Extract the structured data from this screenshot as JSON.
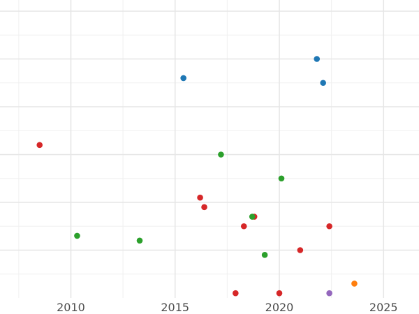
{
  "chart_data": {
    "type": "scatter",
    "title": "",
    "xlabel": "",
    "ylabel": "",
    "xlim": [
      2006.6,
      2026.7
    ],
    "ylim": [
      0,
      6
    ],
    "x_ticks": [
      2010,
      2015,
      2020,
      2025
    ],
    "x_tick_labels": [
      "2010",
      "2015",
      "2020",
      "2025"
    ],
    "y_gridlines": [
      1,
      2,
      3,
      4,
      5,
      6
    ],
    "y_tick_labels_visible": false,
    "grid": true,
    "legend": "none",
    "series": [
      {
        "color": "#1f77b4",
        "points": [
          {
            "x": 2015.4,
            "y": 4.6
          },
          {
            "x": 2021.8,
            "y": 5.0
          },
          {
            "x": 2022.1,
            "y": 4.5
          }
        ]
      },
      {
        "color": "#d62728",
        "points": [
          {
            "x": 2008.5,
            "y": 3.2
          },
          {
            "x": 2016.2,
            "y": 2.1
          },
          {
            "x": 2016.4,
            "y": 1.9
          },
          {
            "x": 2017.9,
            "y": 0.1
          },
          {
            "x": 2018.3,
            "y": 1.5
          },
          {
            "x": 2018.8,
            "y": 1.7
          },
          {
            "x": 2020.0,
            "y": 0.1
          },
          {
            "x": 2021.0,
            "y": 1.0
          },
          {
            "x": 2022.4,
            "y": 1.5
          }
        ]
      },
      {
        "color": "#2ca02c",
        "points": [
          {
            "x": 2010.3,
            "y": 1.3
          },
          {
            "x": 2013.3,
            "y": 1.2
          },
          {
            "x": 2017.2,
            "y": 3.0
          },
          {
            "x": 2018.7,
            "y": 1.7
          },
          {
            "x": 2019.3,
            "y": 0.9
          },
          {
            "x": 2020.1,
            "y": 2.5
          }
        ]
      },
      {
        "color": "#ff7f0e",
        "points": [
          {
            "x": 2023.6,
            "y": 0.3
          }
        ]
      },
      {
        "color": "#9467bd",
        "points": [
          {
            "x": 2022.4,
            "y": 0.1
          }
        ]
      }
    ]
  }
}
